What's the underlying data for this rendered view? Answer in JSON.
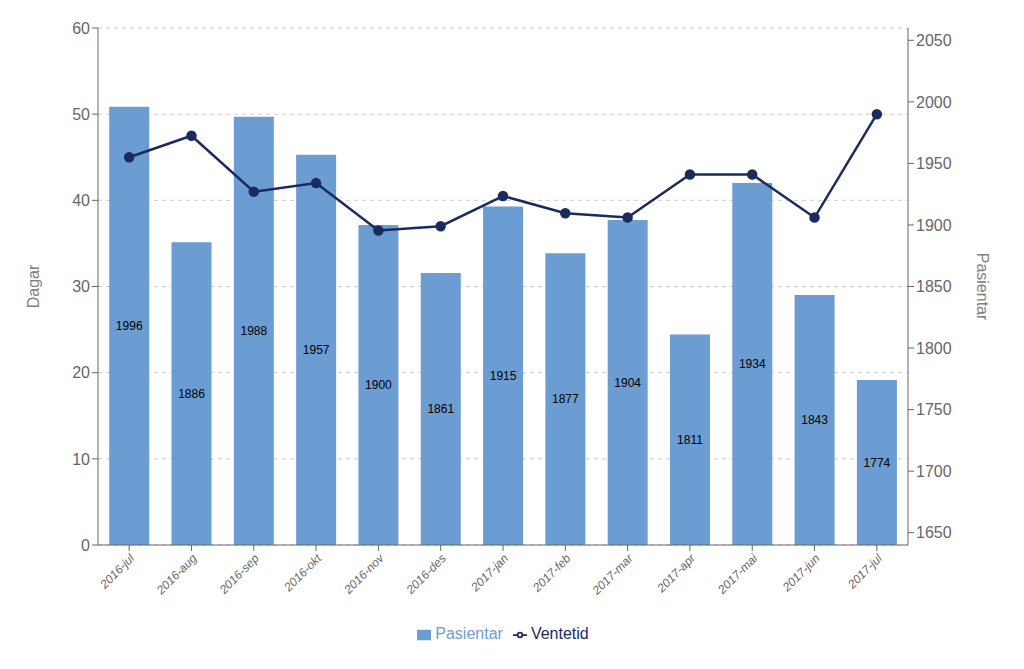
{
  "chart_data": {
    "type": "combo",
    "categories": [
      "2016-jul",
      "2016-aug",
      "2016-sep",
      "2016-okt",
      "2016-nov",
      "2016-des",
      "2017-jan",
      "2017-feb",
      "2017-mar",
      "2017-apr",
      "2017-mai",
      "2017-jun",
      "2017-jul"
    ],
    "series": [
      {
        "name": "Pasientar",
        "type": "bar",
        "axis": "y2",
        "color": "#6b9cd2",
        "data_labels": true,
        "values": [
          1996,
          1886,
          1988,
          1957,
          1900,
          1861,
          1915,
          1877,
          1904,
          1811,
          1934,
          1843,
          1774
        ]
      },
      {
        "name": "Ventetid",
        "type": "line",
        "color": "#1a2b5e",
        "marker": "circle",
        "values": [
          45,
          47.5,
          41,
          42,
          36.5,
          37,
          40.5,
          38.5,
          38,
          43,
          43,
          38,
          50
        ]
      }
    ],
    "ylabel": "Dagar",
    "y2label": "Pasientar",
    "ylim": [
      0,
      60
    ],
    "yticks": [
      0,
      10,
      20,
      30,
      40,
      50,
      60
    ],
    "y2lim": [
      1640,
      2060
    ],
    "y2ticks": [
      1650,
      1700,
      1750,
      1800,
      1850,
      1900,
      1950,
      2000,
      2050
    ],
    "grid": true,
    "legend": "bottom"
  }
}
